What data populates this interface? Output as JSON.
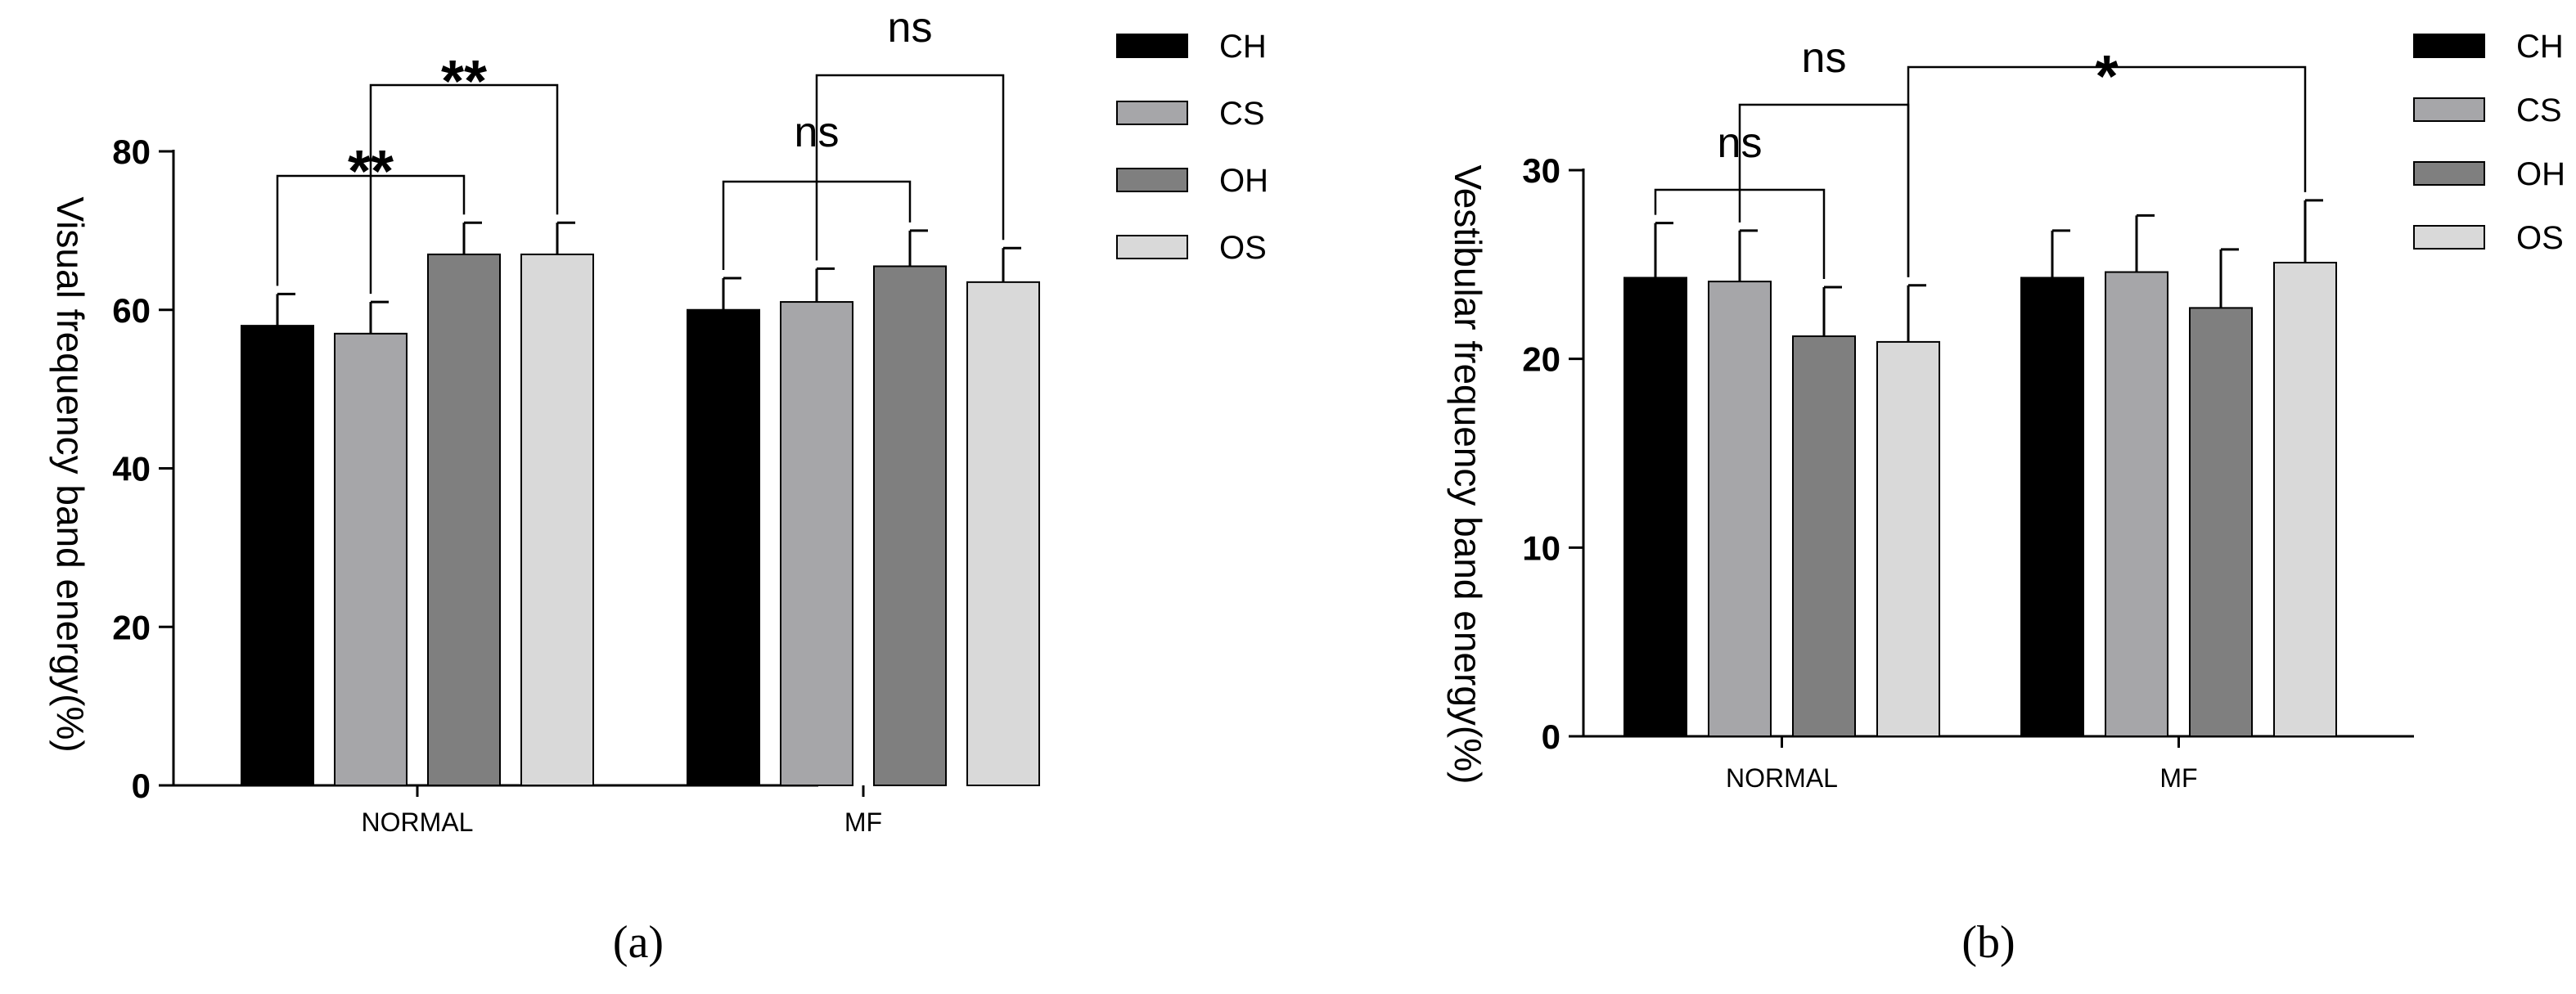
{
  "chart_data": [
    {
      "type": "bar",
      "panel_label": "(a)",
      "ylabel": "Visual frequency band energy(%)",
      "ylim": [
        0,
        80
      ],
      "yticks": [
        0,
        20,
        40,
        60,
        80
      ],
      "categories": [
        "NORMAL",
        "MF"
      ],
      "legend_position": "right",
      "series": [
        {
          "name": "CH",
          "color": "#000000",
          "values": [
            58,
            60
          ],
          "errors": [
            4,
            4
          ]
        },
        {
          "name": "CS",
          "color": "#a6a6a9",
          "values": [
            57,
            61
          ],
          "errors": [
            4,
            4.2
          ]
        },
        {
          "name": "OH",
          "color": "#7f7f7f",
          "values": [
            67,
            65.5
          ],
          "errors": [
            4,
            4.5
          ]
        },
        {
          "name": "OS",
          "color": "#d9d9d9",
          "values": [
            67,
            63.5
          ],
          "errors": [
            4,
            4.3
          ]
        }
      ],
      "annotations": [
        {
          "label": "**",
          "from": {
            "group": 0,
            "series": 0
          },
          "to": {
            "group": 0,
            "series": 2
          }
        },
        {
          "label": "**",
          "from": {
            "group": 0,
            "series": 1
          },
          "to": {
            "group": 0,
            "series": 3
          }
        },
        {
          "label": "ns",
          "from": {
            "group": 1,
            "series": 0
          },
          "to": {
            "group": 1,
            "series": 2
          }
        },
        {
          "label": "ns",
          "from": {
            "group": 1,
            "series": 1
          },
          "to": {
            "group": 1,
            "series": 3
          }
        }
      ]
    },
    {
      "type": "bar",
      "panel_label": "(b)",
      "ylabel": "Vestibular frequency band energy(%)",
      "ylim": [
        0,
        30
      ],
      "yticks": [
        0,
        10,
        20,
        30
      ],
      "categories": [
        "NORMAL",
        "MF"
      ],
      "legend_position": "right",
      "series": [
        {
          "name": "CH",
          "color": "#000000",
          "values": [
            24.3,
            24.3
          ],
          "errors": [
            2.9,
            2.5
          ]
        },
        {
          "name": "CS",
          "color": "#a6a6a9",
          "values": [
            24.1,
            24.6
          ],
          "errors": [
            2.7,
            3.0
          ]
        },
        {
          "name": "OH",
          "color": "#7f7f7f",
          "values": [
            21.2,
            22.7
          ],
          "errors": [
            2.6,
            3.1
          ]
        },
        {
          "name": "OS",
          "color": "#d9d9d9",
          "values": [
            20.9,
            25.1
          ],
          "errors": [
            3.0,
            3.3
          ]
        }
      ],
      "annotations": [
        {
          "label": "ns",
          "from": {
            "group": 0,
            "series": 0
          },
          "to": {
            "group": 0,
            "series": 2
          }
        },
        {
          "label": "ns",
          "from": {
            "group": 0,
            "series": 1
          },
          "to": {
            "group": 0,
            "series": 3
          }
        },
        {
          "label": "*",
          "from": {
            "group": 0,
            "series": 3
          },
          "to": {
            "group": 1,
            "series": 3
          }
        }
      ]
    }
  ]
}
